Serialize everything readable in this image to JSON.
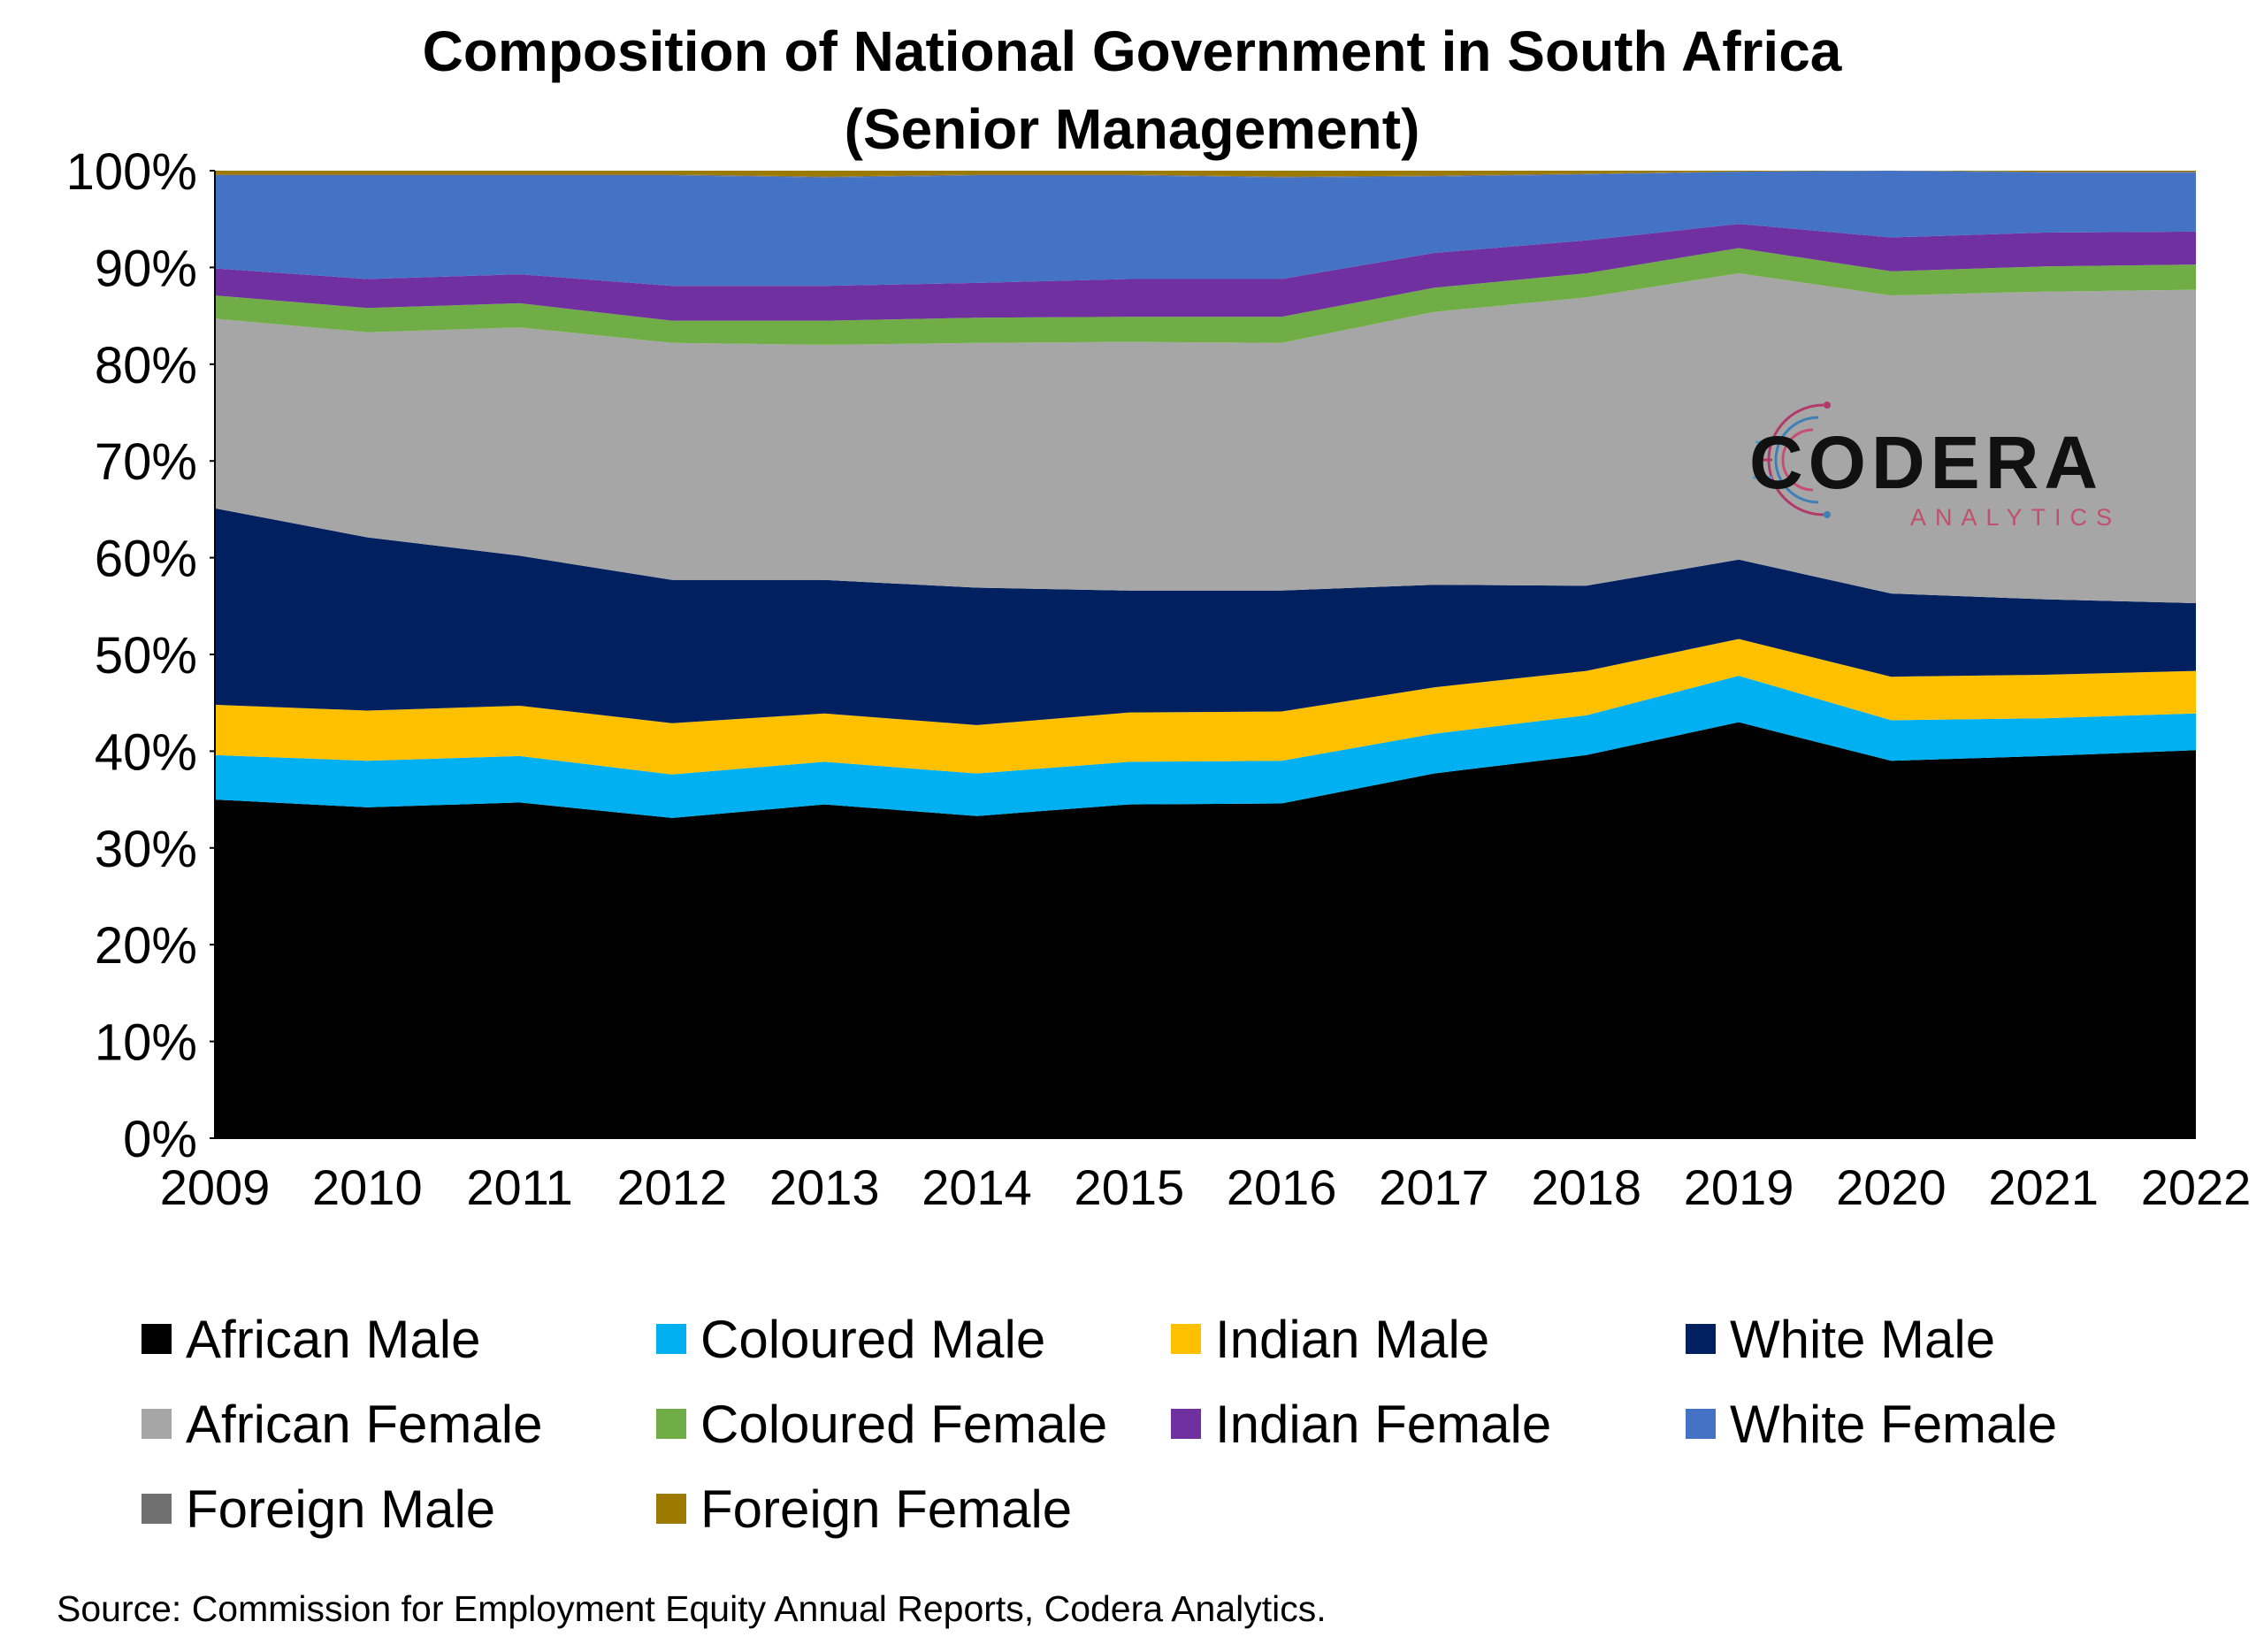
{
  "title": {
    "line1": "Composition of National Government in South Africa",
    "line2": "(Senior Management)"
  },
  "logo": {
    "name": "CODERA",
    "tagline": "ANALYTICS"
  },
  "source": "Source: Commission for Employment Equity Annual Reports, Codera Analytics.",
  "chart_data": {
    "type": "area",
    "stacked": true,
    "normalized_percent": true,
    "x": [
      "2009",
      "2010",
      "2011",
      "2012",
      "2013",
      "2014",
      "2015",
      "2016",
      "2017",
      "2018",
      "2019",
      "2020",
      "2021",
      "2022"
    ],
    "ylim": [
      0,
      100
    ],
    "yticks": [
      "0%",
      "10%",
      "20%",
      "30%",
      "40%",
      "50%",
      "60%",
      "70%",
      "80%",
      "90%",
      "100%"
    ],
    "legend_position": "bottom",
    "series": [
      {
        "name": "African Male",
        "color": "#000000",
        "values": [
          35.0,
          34.2,
          34.7,
          33.1,
          34.5,
          33.3,
          34.5,
          34.6,
          37.7,
          39.6,
          43.0,
          39.0,
          39.5,
          40.1
        ]
      },
      {
        "name": "Coloured Male",
        "color": "#00B0F0",
        "values": [
          4.6,
          4.8,
          4.8,
          4.5,
          4.4,
          4.4,
          4.4,
          4.4,
          4.1,
          4.1,
          4.8,
          4.2,
          3.9,
          3.8
        ]
      },
      {
        "name": "Indian Male",
        "color": "#FFC000",
        "values": [
          5.2,
          5.2,
          5.2,
          5.3,
          5.0,
          5.0,
          5.1,
          5.1,
          4.8,
          4.6,
          3.8,
          4.5,
          4.5,
          4.4
        ]
      },
      {
        "name": "White Male",
        "color": "#002060",
        "values": [
          20.3,
          17.9,
          15.5,
          14.8,
          13.8,
          14.2,
          12.6,
          12.5,
          10.6,
          8.8,
          8.2,
          8.6,
          7.8,
          7.0
        ]
      },
      {
        "name": "African Female",
        "color": "#A6A6A6",
        "values": [
          19.6,
          21.2,
          23.6,
          24.5,
          24.3,
          25.3,
          25.7,
          25.6,
          28.2,
          29.8,
          29.6,
          30.8,
          31.8,
          32.4
        ]
      },
      {
        "name": "Coloured Female",
        "color": "#70AD47",
        "values": [
          2.4,
          2.5,
          2.5,
          2.3,
          2.5,
          2.6,
          2.6,
          2.7,
          2.5,
          2.5,
          2.6,
          2.5,
          2.6,
          2.6
        ]
      },
      {
        "name": "Indian Female",
        "color": "#7030A0",
        "values": [
          2.8,
          3.0,
          3.0,
          3.6,
          3.6,
          3.6,
          3.9,
          3.9,
          3.6,
          3.4,
          2.5,
          3.5,
          3.5,
          3.4
        ]
      },
      {
        "name": "White Female",
        "color": "#4472C4",
        "values": [
          9.6,
          10.7,
          10.2,
          11.4,
          11.2,
          11.1,
          10.7,
          10.5,
          7.9,
          6.8,
          5.4,
          6.9,
          6.2,
          6.1
        ]
      },
      {
        "name": "Foreign Male",
        "color": "#707070",
        "values": [
          0.1,
          0.1,
          0.1,
          0.1,
          0.1,
          0.1,
          0.1,
          0.1,
          0.1,
          0.1,
          0.0,
          0.0,
          0.1,
          0.1
        ]
      },
      {
        "name": "Foreign Female",
        "color": "#9C7A00",
        "values": [
          0.4,
          0.4,
          0.4,
          0.4,
          0.6,
          0.4,
          0.4,
          0.6,
          0.5,
          0.3,
          0.1,
          0.0,
          0.1,
          0.1
        ]
      }
    ]
  }
}
